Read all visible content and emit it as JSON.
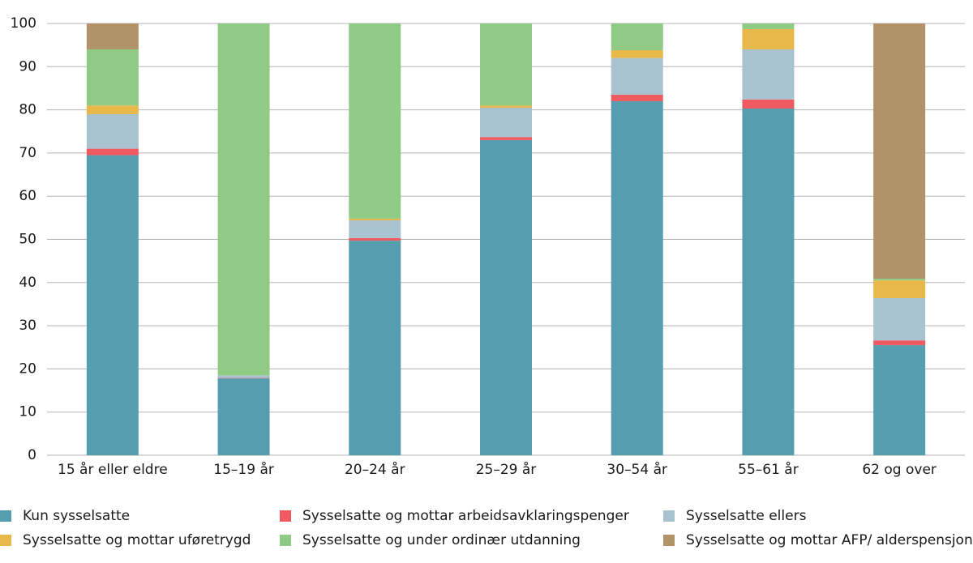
{
  "chart_data": {
    "type": "stacked-bar",
    "categories": [
      "15 år eller eldre",
      "15–19 år",
      "20–24 år",
      "25–29 år",
      "30–54 år",
      "55–61 år",
      "62 og over"
    ],
    "series": [
      {
        "name": "Kun sysselsatte",
        "color": "#559eb0",
        "values": [
          69.5,
          17.8,
          49.7,
          73,
          82,
          80.3,
          25.5
        ]
      },
      {
        "name": "Sysselsatte og mottar arbeidsavklaringspenger",
        "color": "#ef5a60",
        "values": [
          1.5,
          0.1,
          0.6,
          0.7,
          1.5,
          2.1,
          1.1
        ]
      },
      {
        "name": "Sysselsatte ellers",
        "color": "#a8c3cf",
        "values": [
          8,
          0.6,
          4.1,
          6.8,
          8.5,
          11.6,
          9.8
        ]
      },
      {
        "name": "Sysselsatte og mottar uføretrygd",
        "color": "#e8b84b",
        "values": [
          2,
          0,
          0.4,
          0.5,
          1.8,
          4.7,
          4.1
        ]
      },
      {
        "name": "Sysselsatte og under ordinær utdanning",
        "color": "#8fcb85",
        "values": [
          13,
          81.5,
          45.2,
          19,
          6.2,
          1.3,
          0.4
        ]
      },
      {
        "name": "Sysselsatte og mottar AFP/ alderspensjon",
        "color": "#b09369",
        "values": [
          6,
          0,
          0,
          0,
          0,
          0,
          59.1
        ]
      }
    ],
    "ylim": [
      0,
      100
    ],
    "yticks": [
      0,
      10,
      20,
      30,
      40,
      50,
      60,
      70,
      80,
      90,
      100
    ],
    "grid": true,
    "legend": "bottom"
  }
}
